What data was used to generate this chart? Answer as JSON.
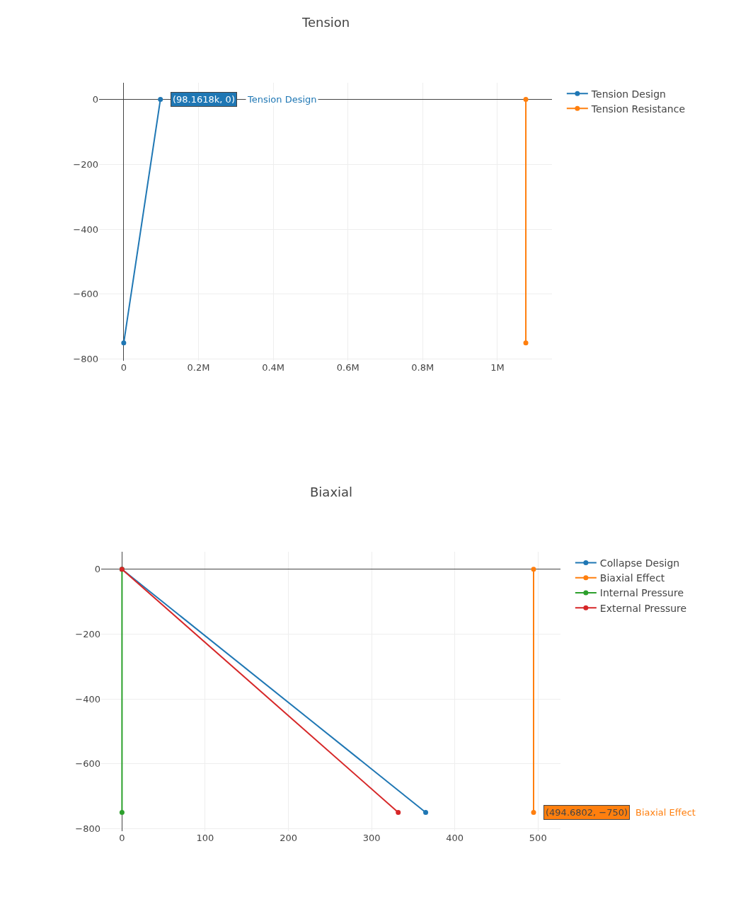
{
  "chart_data": [
    {
      "type": "line",
      "title": "Tension",
      "marker": "circle",
      "line_style": "solid",
      "grid": true,
      "legend": "top right",
      "series": [
        {
          "name": "Tension Design",
          "color": "#1f77b4",
          "x": [
            0,
            98161.8
          ],
          "values": [
            -750,
            0
          ]
        },
        {
          "name": "Tension Resistance",
          "color": "#ff7f0e",
          "x": [
            1076000,
            1076000
          ],
          "values": [
            0,
            -750
          ]
        }
      ],
      "xlim": [
        -66000,
        1146000
      ],
      "ylim": [
        -805,
        52
      ],
      "xticks": [
        0,
        {
          "value": 200000,
          "label": "0.2M"
        },
        {
          "value": 400000,
          "label": "0.4M"
        },
        {
          "value": 600000,
          "label": "0.6M"
        },
        {
          "value": 800000,
          "label": "0.8M"
        },
        {
          "value": 1000000,
          "label": "1M"
        }
      ],
      "yticks": [
        0,
        {
          "value": -200,
          "label": "−200"
        },
        {
          "value": -400,
          "label": "−400"
        },
        {
          "value": -600,
          "label": "−600"
        },
        {
          "value": -800,
          "label": "−800"
        }
      ],
      "annotations": [
        {
          "text": "(98.1618k, 0)",
          "x": 98161.8,
          "y": 0
        },
        "Tension Design"
      ]
    },
    {
      "type": "line",
      "title": "Biaxial",
      "marker": "circle",
      "line_style": "solid",
      "grid": true,
      "legend": "top right",
      "series": [
        {
          "name": "Collapse Design",
          "color": "#1f77b4",
          "x": [
            0,
            365
          ],
          "values": [
            0,
            -750
          ]
        },
        {
          "name": "Biaxial Effect",
          "color": "#ff7f0e",
          "x": [
            494.6802,
            494.6802
          ],
          "values": [
            0,
            -750
          ]
        },
        {
          "name": "Internal Pressure",
          "color": "#2ca02c",
          "x": [
            0,
            0
          ],
          "values": [
            0,
            -750
          ]
        },
        {
          "name": "External Pressure",
          "color": "#d62728",
          "x": [
            0,
            332
          ],
          "values": [
            0,
            -750
          ]
        }
      ],
      "xlim": [
        -25,
        527
      ],
      "ylim": [
        -809,
        54
      ],
      "xticks": [
        0,
        100,
        200,
        300,
        400,
        500
      ],
      "yticks": [
        0,
        {
          "value": -200,
          "label": "−200"
        },
        {
          "value": -400,
          "label": "−400"
        },
        {
          "value": -600,
          "label": "−600"
        },
        {
          "value": -800,
          "label": "−800"
        }
      ],
      "annotations": [
        {
          "text": "(494.6802, −750)",
          "x": 494.6802,
          "y": -750
        },
        "Biaxial Effect"
      ]
    }
  ]
}
